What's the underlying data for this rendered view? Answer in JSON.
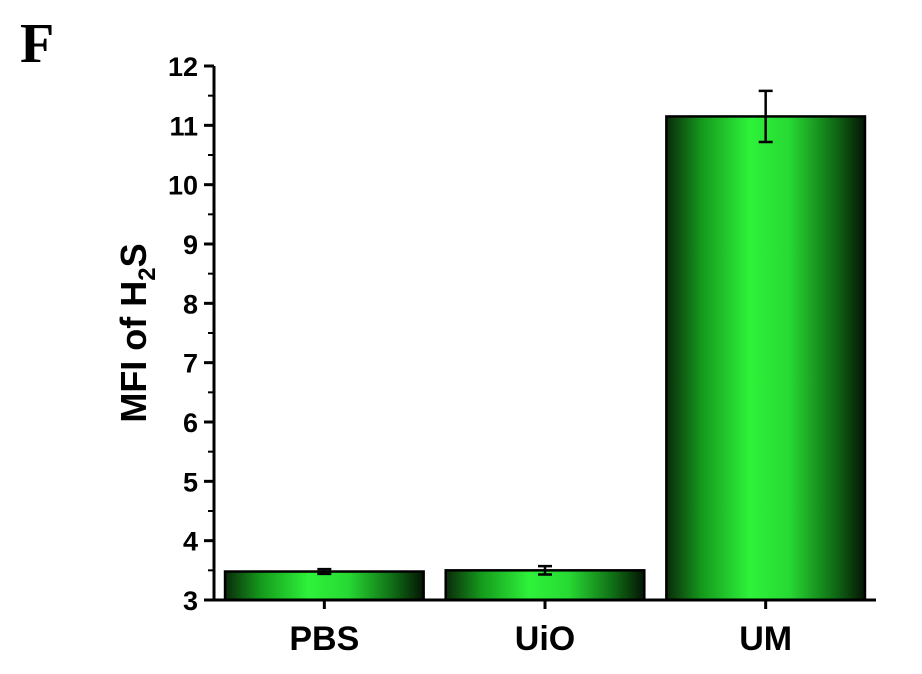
{
  "panel_label": "F",
  "chart_data": {
    "type": "bar",
    "categories": [
      "PBS",
      "UiO",
      "UM"
    ],
    "values": [
      3.48,
      3.5,
      11.15
    ],
    "errors": [
      0.04,
      0.07,
      0.43
    ],
    "ylabel": {
      "prefix": "MFI of H",
      "subscript": "2",
      "suffix": "S"
    },
    "xlabel": "",
    "ylim": [
      3,
      12
    ],
    "yticks": [
      3,
      4,
      5,
      6,
      7,
      8,
      9,
      10,
      11,
      12
    ],
    "bar_color": "#2ef23a",
    "grid": false,
    "legend": "none"
  }
}
